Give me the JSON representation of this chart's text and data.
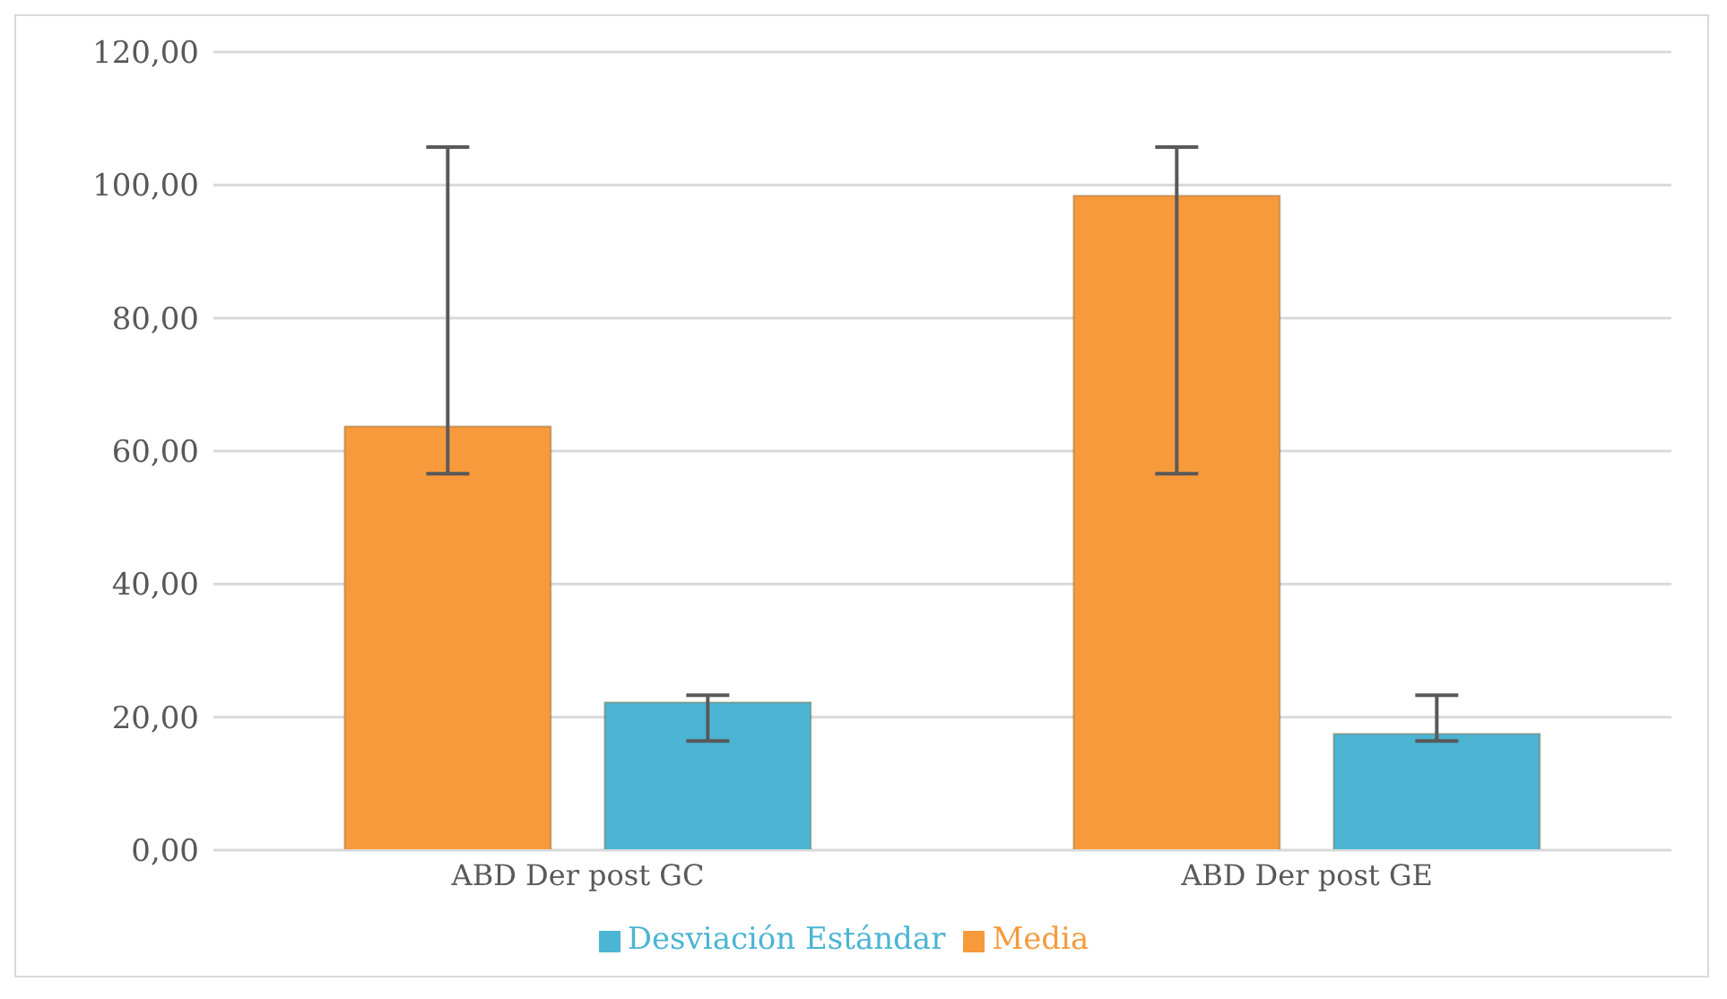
{
  "chart_data": {
    "type": "bar",
    "categories": [
      "ABD Der post GC",
      "ABD Der post GE"
    ],
    "series": [
      {
        "name": "Media",
        "color": "#f79a3c",
        "values": [
          63.7,
          98.4
        ],
        "errors": [
          [
            56.6,
            105.7
          ],
          [
            56.6,
            105.7
          ]
        ]
      },
      {
        "name": "Desviación Estándar",
        "color": "#4bb5d3",
        "values": [
          22.2,
          17.5
        ],
        "errors": [
          [
            16.4,
            23.3
          ],
          [
            16.4,
            23.3
          ]
        ]
      }
    ],
    "ylim": [
      0,
      120
    ],
    "yticks": [
      {
        "value": 0,
        "label": "0,00"
      },
      {
        "value": 20,
        "label": "20,00"
      },
      {
        "value": 40,
        "label": "40,00"
      },
      {
        "value": 60,
        "label": "60,00"
      },
      {
        "value": 80,
        "label": "80,00"
      },
      {
        "value": 100,
        "label": "100,00"
      },
      {
        "value": 120,
        "label": "120,00"
      }
    ],
    "grid": "y",
    "legend": "bottom"
  }
}
